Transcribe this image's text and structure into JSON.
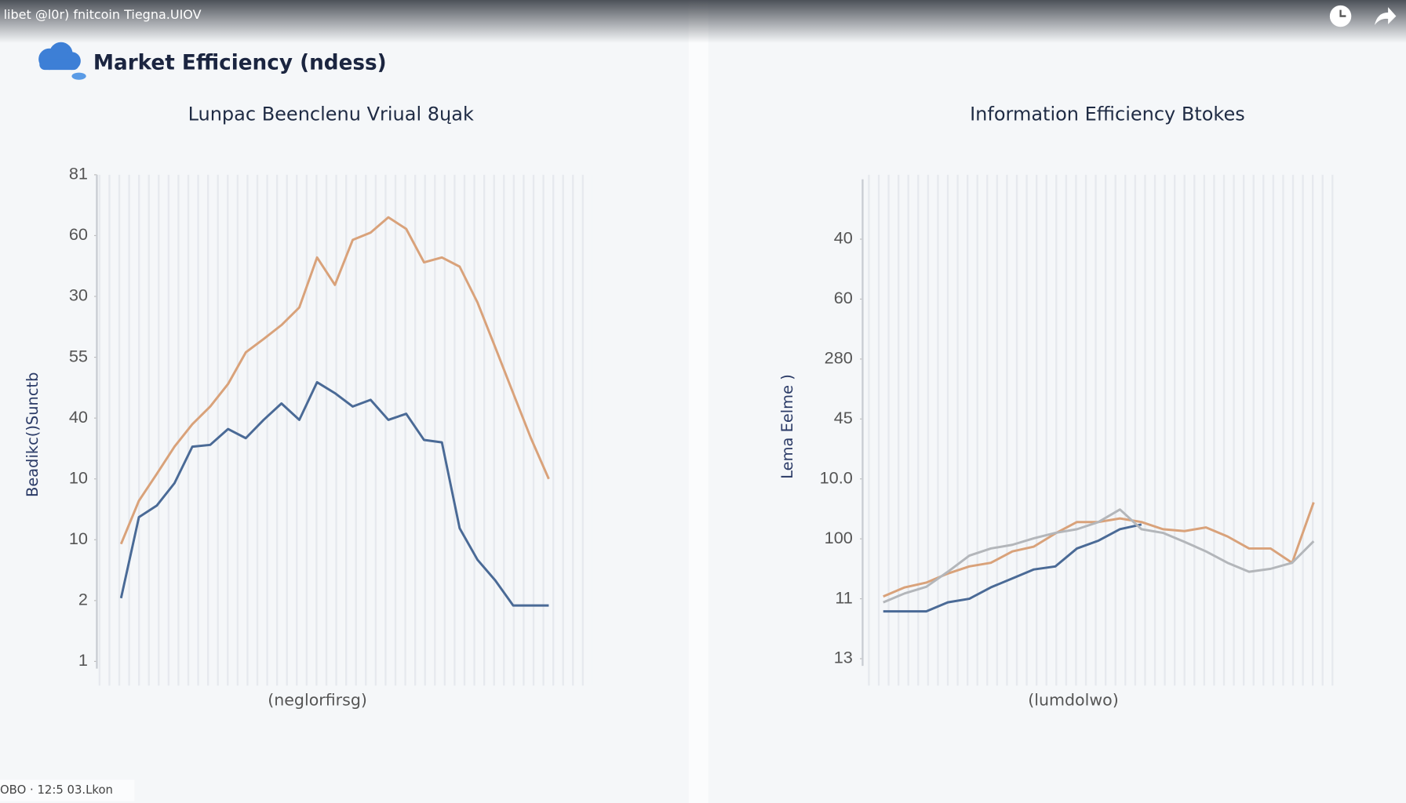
{
  "top_bar": {
    "title": "libet @l0r) fnitcoin Tiegna.UIOV"
  },
  "header": {
    "title": "Market Efficiency (ndess)"
  },
  "footer": {
    "text": "OBO · 12:5 03.Lkon"
  },
  "chart_data": [
    {
      "type": "line",
      "title": "Lunpac Beenclenu Vriual 8ųak",
      "x_label": "(neglorfirsg)",
      "y_label": "Beadikc()Sunctb",
      "ylim": [
        0,
        8
      ],
      "yticks": [
        {
          "value": 8,
          "label": "81"
        },
        {
          "value": 7,
          "label": "60"
        },
        {
          "value": 6,
          "label": "30"
        },
        {
          "value": 5,
          "label": "55"
        },
        {
          "value": 4,
          "label": "40"
        },
        {
          "value": 3,
          "label": "10"
        },
        {
          "value": 2,
          "label": "10"
        },
        {
          "value": 1,
          "label": "2"
        },
        {
          "value": 0,
          "label": "1"
        }
      ],
      "series": [
        {
          "color": "#d9a27a",
          "values": [
            1.93,
            2.64,
            3.08,
            3.53,
            3.9,
            4.19,
            4.56,
            5.08,
            5.3,
            5.53,
            5.82,
            6.64,
            6.19,
            6.93,
            7.05,
            7.3,
            7.11,
            6.56,
            6.64,
            6.49,
            5.9,
            5.16,
            4.41,
            3.67,
            3.0
          ]
        },
        {
          "color": "#4a6a96",
          "values": [
            1.04,
            2.37,
            2.56,
            2.93,
            3.53,
            3.56,
            3.82,
            3.67,
            3.97,
            4.24,
            3.97,
            4.59,
            4.41,
            4.19,
            4.3,
            3.97,
            4.07,
            3.64,
            3.6,
            2.19,
            1.67,
            1.33,
            0.92,
            0.92,
            0.92
          ]
        }
      ]
    },
    {
      "type": "line",
      "title": "Information Efficiency Btokes",
      "x_label": "(lumdolwo)",
      "y_label": "Lema Eelme )",
      "ylim": [
        0,
        8
      ],
      "yticks": [
        {
          "value": 7,
          "label": "40"
        },
        {
          "value": 6,
          "label": "60"
        },
        {
          "value": 5,
          "label": "280"
        },
        {
          "value": 4,
          "label": "45"
        },
        {
          "value": 3,
          "label": "10.0"
        },
        {
          "value": 2,
          "label": "100"
        },
        {
          "value": 1,
          "label": "11"
        },
        {
          "value": 0,
          "label": "13"
        }
      ],
      "series": [
        {
          "color": "#d9a27a",
          "values": [
            1.04,
            1.19,
            1.27,
            1.42,
            1.54,
            1.6,
            1.79,
            1.87,
            2.09,
            2.28,
            2.28,
            2.34,
            2.28,
            2.16,
            2.13,
            2.19,
            2.04,
            1.84,
            1.84,
            1.6,
            2.61
          ]
        },
        {
          "color": "#4a6a96",
          "values": [
            0.79,
            0.79,
            0.79,
            0.94,
            1.0,
            1.19,
            1.34,
            1.49,
            1.54,
            1.84,
            1.97,
            2.16,
            2.24,
            null,
            null,
            null,
            null,
            null,
            null,
            null,
            null
          ]
        },
        {
          "color": "#b3b6ba",
          "values": [
            0.94,
            1.09,
            1.2,
            1.45,
            1.72,
            1.84,
            1.9,
            2.01,
            2.1,
            2.16,
            2.28,
            2.49,
            2.16,
            2.1,
            1.95,
            1.79,
            1.6,
            1.45,
            1.5,
            1.6,
            1.96
          ]
        }
      ]
    }
  ]
}
